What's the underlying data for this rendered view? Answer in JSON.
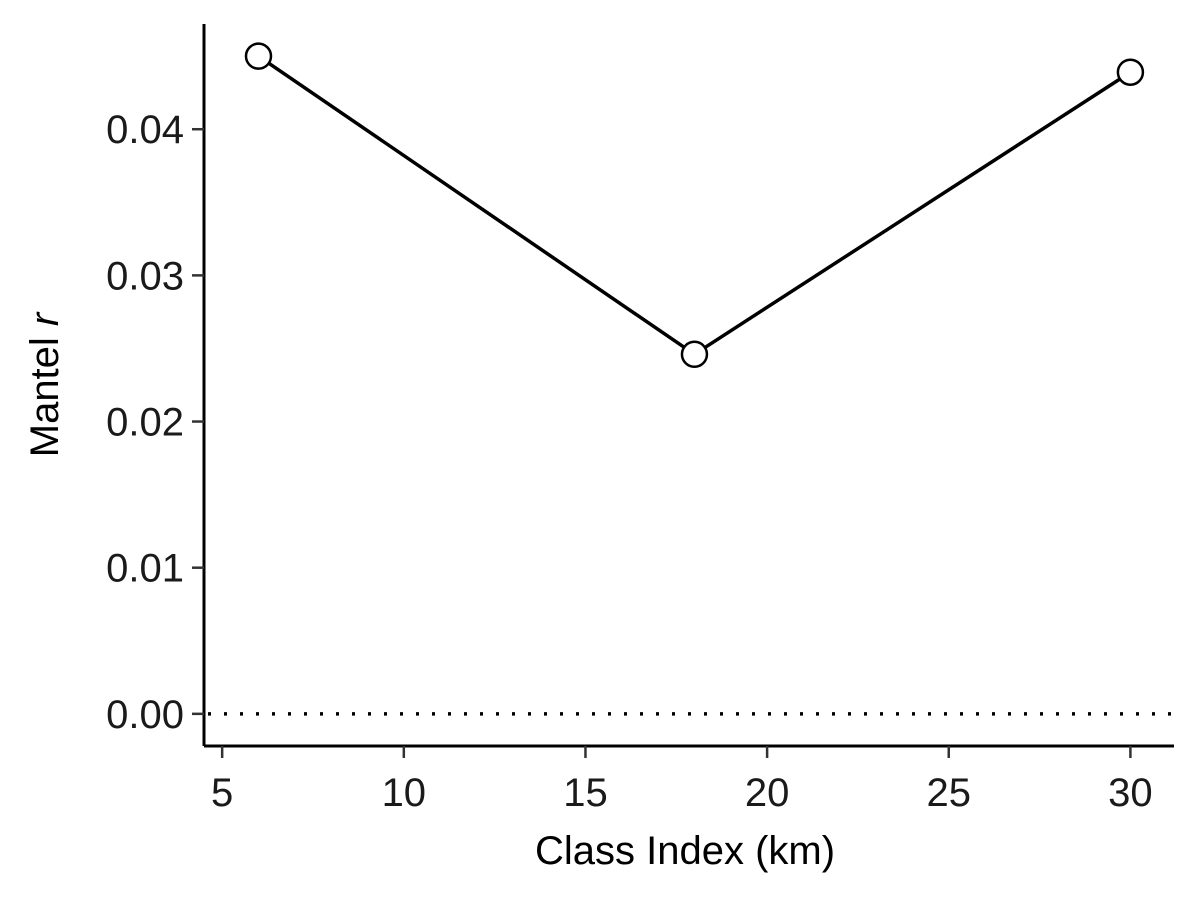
{
  "chart_data": {
    "type": "line",
    "title": "",
    "xlabel": "Class Index (km)",
    "ylabel": {
      "prefix": "Mantel ",
      "italic": "r"
    },
    "xlim": [
      4.5,
      31.2
    ],
    "ylim": [
      -0.0022,
      0.0472
    ],
    "xticks": [
      5,
      10,
      15,
      20,
      25,
      30
    ],
    "yticks": [
      0.0,
      0.01,
      0.02,
      0.03,
      0.04
    ],
    "ytick_labels": [
      "0.00",
      "0.01",
      "0.02",
      "0.03",
      "0.04"
    ],
    "xtick_labels": [
      "5",
      "10",
      "15",
      "20",
      "25",
      "30"
    ],
    "reference_line": {
      "y": 0,
      "style": "dotted"
    },
    "series": [
      {
        "x": [
          6,
          18,
          30
        ],
        "y": [
          0.045,
          0.0246,
          0.0439
        ],
        "line_color": "#000000",
        "marker": "open-circle",
        "marker_fill": "#ffffff"
      }
    ],
    "grid": false,
    "legend": "none"
  }
}
